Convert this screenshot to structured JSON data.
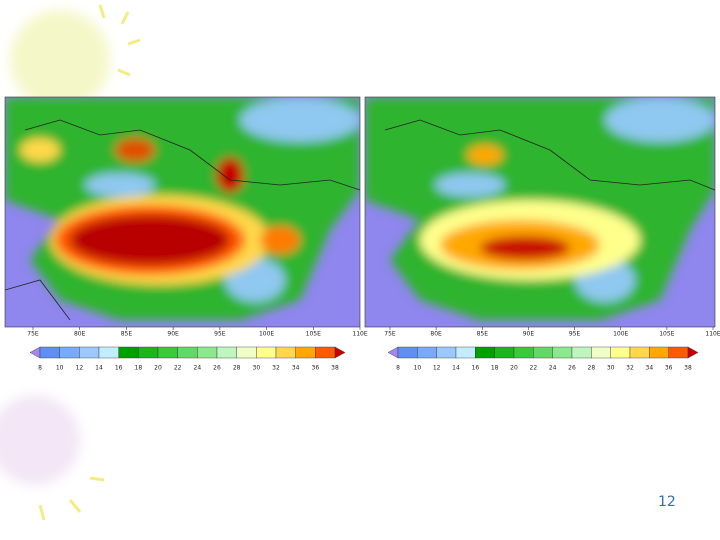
{
  "maps": [
    {
      "xticks": [
        "75E",
        "80E",
        "85E",
        "90E",
        "95E",
        "100E",
        "105E",
        "110E"
      ]
    },
    {
      "xticks": [
        "75E",
        "80E",
        "85E",
        "90E",
        "95E",
        "100E",
        "105E",
        "110E"
      ]
    }
  ],
  "colorbar": {
    "labels": [
      8,
      10,
      12,
      14,
      16,
      18,
      20,
      22,
      24,
      26,
      28,
      30,
      32,
      34,
      36,
      38
    ],
    "colors": [
      "#a088f0",
      "#5f8ff0",
      "#78aaf8",
      "#9cc8ff",
      "#c4ecff",
      "#00a000",
      "#1eb41e",
      "#3cc83c",
      "#64d864",
      "#8ce88c",
      "#bff6bf",
      "#f0ffc8",
      "#ffff8c",
      "#ffd84a",
      "#ffa800",
      "#ff5a00",
      "#c80000"
    ]
  },
  "slide_number": 12
}
